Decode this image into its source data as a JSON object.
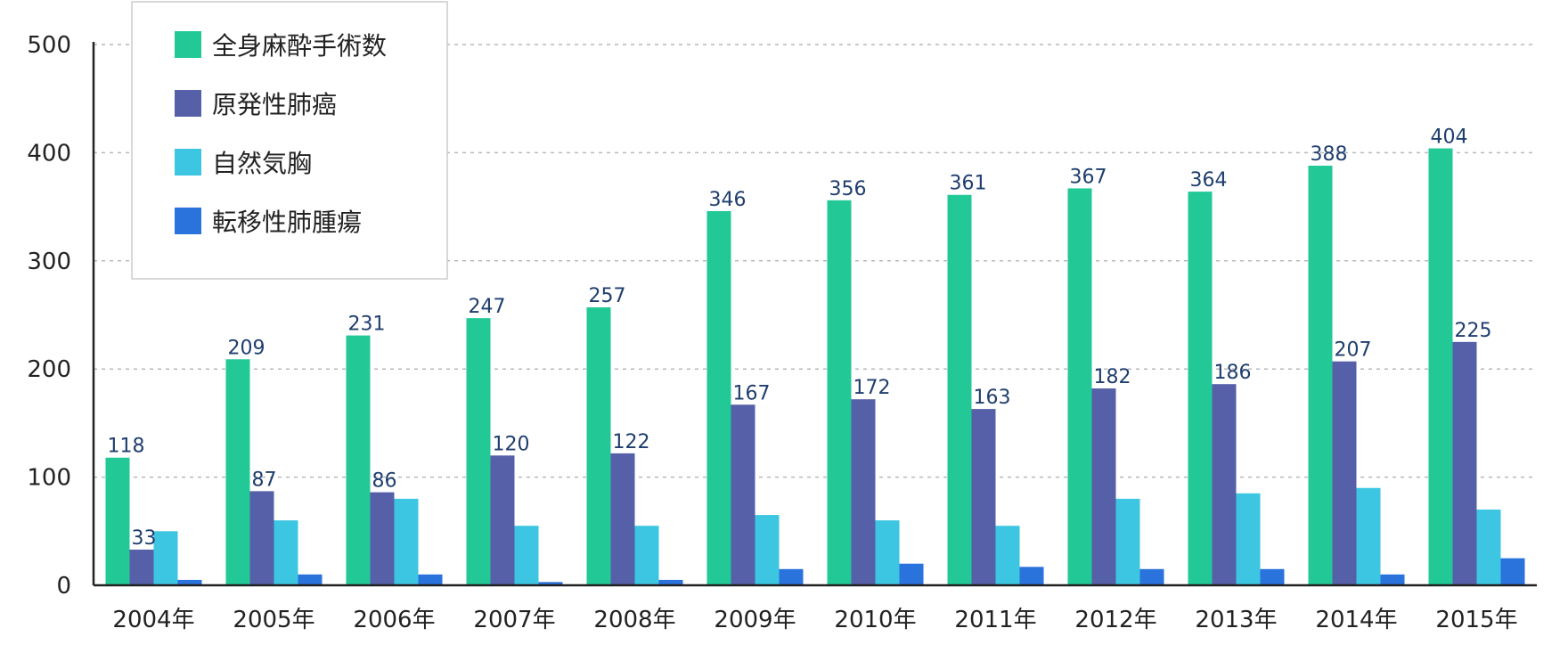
{
  "chart_data": {
    "type": "bar",
    "title": "",
    "xlabel": "",
    "ylabel": "",
    "ylim": [
      0,
      500
    ],
    "yticks": [
      "0",
      "100",
      "200",
      "300",
      "400",
      "500"
    ],
    "grid": true,
    "legend_position": "top-left",
    "categories": [
      "2004年",
      "2005年",
      "2006年",
      "2007年",
      "2008年",
      "2009年",
      "2010年",
      "2011年",
      "2012年",
      "2013年",
      "2014年",
      "2015年"
    ],
    "series": [
      {
        "name": "全身麻酔手術数",
        "color": "#22c997",
        "values": [
          118,
          209,
          231,
          247,
          257,
          346,
          356,
          361,
          367,
          364,
          388,
          404
        ],
        "labels": [
          "118",
          "209",
          "231",
          "247",
          "257",
          "346",
          "356",
          "361",
          "367",
          "364",
          "388",
          "404"
        ]
      },
      {
        "name": "原発性肺癌",
        "color": "#5560a8",
        "values": [
          33,
          87,
          86,
          120,
          122,
          167,
          172,
          163,
          182,
          186,
          207,
          225
        ],
        "labels": [
          "33",
          "87",
          "86",
          "120",
          "122",
          "167",
          "172",
          "163",
          "182",
          "186",
          "207",
          "225"
        ]
      },
      {
        "name": "自然気胸",
        "color": "#3cc6e2",
        "values": [
          50,
          60,
          80,
          55,
          55,
          65,
          60,
          55,
          80,
          85,
          90,
          70
        ]
      },
      {
        "name": "転移性肺腫瘍",
        "color": "#2a72dc",
        "values": [
          5,
          10,
          10,
          3,
          5,
          15,
          20,
          17,
          15,
          15,
          10,
          25
        ]
      }
    ]
  }
}
